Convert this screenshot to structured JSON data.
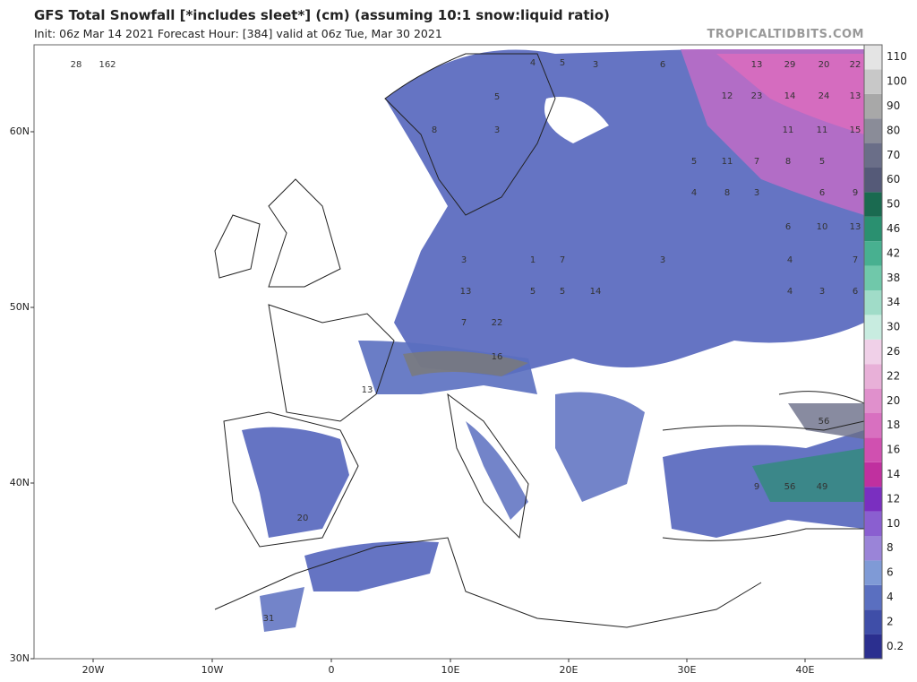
{
  "header": {
    "title": "GFS Total Snowfall [*includes sleet*] (cm) (assuming 10:1 snow:liquid ratio)",
    "subtitle": "Init: 06z Mar 14 2021   Forecast Hour: [384]   valid at 06z Tue, Mar 30 2021",
    "credit": "TROPICALTIDBITS.COM"
  },
  "map": {
    "lat_labels": [
      "60N",
      "50N",
      "40N",
      "30N"
    ],
    "lon_labels": [
      "20W",
      "10W",
      "0",
      "10E",
      "20E",
      "30E",
      "40E"
    ],
    "values": [
      "28",
      "162",
      "5",
      "3",
      "8",
      "4",
      "5",
      "3",
      "6",
      "13",
      "29",
      "20",
      "22",
      "12",
      "23",
      "14",
      "24",
      "13",
      "11",
      "11",
      "15",
      "5",
      "11",
      "7",
      "8",
      "5",
      "4",
      "8",
      "3",
      "6",
      "9",
      "6",
      "10",
      "13",
      "3",
      "1",
      "7",
      "3",
      "4",
      "7",
      "13",
      "5",
      "5",
      "14",
      "4",
      "3",
      "6",
      "7",
      "22",
      "16",
      "13",
      "56",
      "9",
      "56",
      "49",
      "20",
      "31"
    ]
  },
  "colorbar": {
    "levels": [
      0.2,
      2,
      4,
      6,
      8,
      10,
      12,
      14,
      16,
      18,
      20,
      22,
      26,
      30,
      34,
      38,
      42,
      46,
      50,
      60,
      70,
      80,
      90,
      100,
      110
    ],
    "colors": [
      "#2b2f8f",
      "#3f4ea8",
      "#5a6fc0",
      "#7f9ad6",
      "#9a84d8",
      "#8a5fd0",
      "#7a2fc0",
      "#c0309f",
      "#d050b0",
      "#d870c0",
      "#e090cc",
      "#e8b0d8",
      "#f0d0e8",
      "#c8ece0",
      "#a0dcc8",
      "#70c8aa",
      "#48b090",
      "#2a9070",
      "#1a6a50",
      "#555a78",
      "#6a6e88",
      "#8a8c98",
      "#a8a8a8",
      "#c8c8c8",
      "#e4e4e4"
    ]
  }
}
